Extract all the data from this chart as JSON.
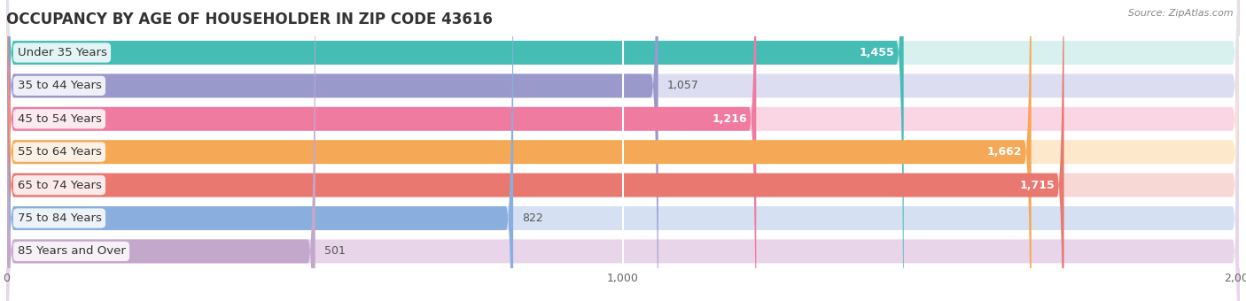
{
  "title": "OCCUPANCY BY AGE OF HOUSEHOLDER IN ZIP CODE 43616",
  "source": "Source: ZipAtlas.com",
  "categories": [
    "Under 35 Years",
    "35 to 44 Years",
    "45 to 54 Years",
    "55 to 64 Years",
    "65 to 74 Years",
    "75 to 84 Years",
    "85 Years and Over"
  ],
  "values": [
    1455,
    1057,
    1216,
    1662,
    1715,
    822,
    501
  ],
  "bar_colors": [
    "#45BDB5",
    "#9999CC",
    "#F07BA0",
    "#F5A855",
    "#E87870",
    "#8AAEDD",
    "#C4A8CC"
  ],
  "bar_bg_colors": [
    "#D8F0EE",
    "#DDDDF2",
    "#FAD5E3",
    "#FDE8CC",
    "#F8D8D5",
    "#D5E0F3",
    "#E8D5EA"
  ],
  "xlim": [
    0,
    2000
  ],
  "xticks": [
    0,
    1000,
    2000
  ],
  "background_color": "#ffffff",
  "bar_area_bg": "#f0f0f0",
  "title_fontsize": 12,
  "label_fontsize": 9.5,
  "value_fontsize": 9
}
